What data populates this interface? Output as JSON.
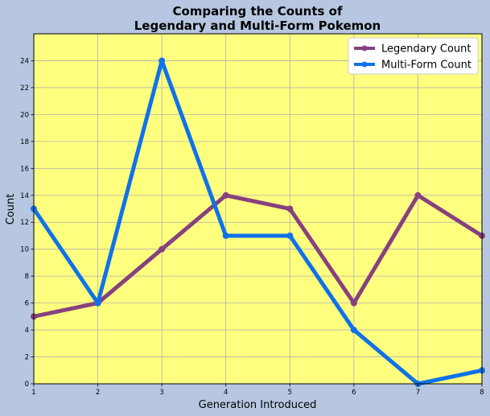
{
  "chart_data": {
    "type": "line",
    "title_line1": "Comparing the Counts of",
    "title_line2": "Legendary and Multi-Form Pokemon",
    "xlabel": "Generation Introduced",
    "ylabel": "Count",
    "x": [
      1,
      2,
      3,
      4,
      5,
      6,
      7,
      8
    ],
    "xlim": [
      1,
      8
    ],
    "ylim": [
      0,
      26
    ],
    "yticks": [
      0,
      2,
      4,
      6,
      8,
      10,
      12,
      14,
      16,
      18,
      20,
      22,
      24
    ],
    "grid": true,
    "legend_position": "top-right",
    "background_color": "#b7c7e1",
    "plot_background_color": "#ffff7f",
    "series": [
      {
        "name": "Legendary Count",
        "color": "#86417e",
        "values": [
          5,
          6,
          10,
          14,
          13,
          6,
          14,
          11
        ]
      },
      {
        "name": "Multi-Form Count",
        "color": "#0f72e8",
        "values": [
          13,
          6,
          24,
          11,
          11,
          4,
          0,
          1
        ]
      }
    ]
  }
}
